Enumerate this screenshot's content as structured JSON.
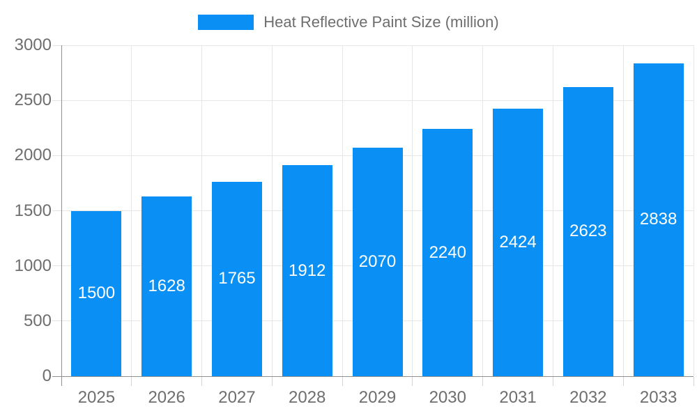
{
  "colors": {
    "bar": "#0a90f5",
    "axis_line": "#909090",
    "gridline": "#e6e6e6",
    "tick_mark": "#d4d4d4",
    "axis_text": "#6e6e6e",
    "value_label_text": "#ffffff",
    "background": "#ffffff"
  },
  "legend": {
    "swatch_icon": "blue-rect-swatch",
    "label": "Heat Reflective Paint Size (million)"
  },
  "chart_data": {
    "type": "bar",
    "title": "Heat Reflective Paint Size (million)",
    "categories": [
      "2025",
      "2026",
      "2027",
      "2028",
      "2029",
      "2030",
      "2031",
      "2032",
      "2033"
    ],
    "values": [
      1500,
      1628,
      1765,
      1912,
      2070,
      2240,
      2424,
      2623,
      2838
    ],
    "series_name": "Heat Reflective Paint Size (million)",
    "xlabel": "",
    "ylabel": "",
    "ylim": [
      0,
      3000
    ],
    "yticks": [
      0,
      500,
      1000,
      1500,
      2000,
      2500,
      3000
    ],
    "grid": true,
    "legend_position": "top-center",
    "value_labels": "inside-center-white",
    "bar_color": "#0a90f5"
  }
}
